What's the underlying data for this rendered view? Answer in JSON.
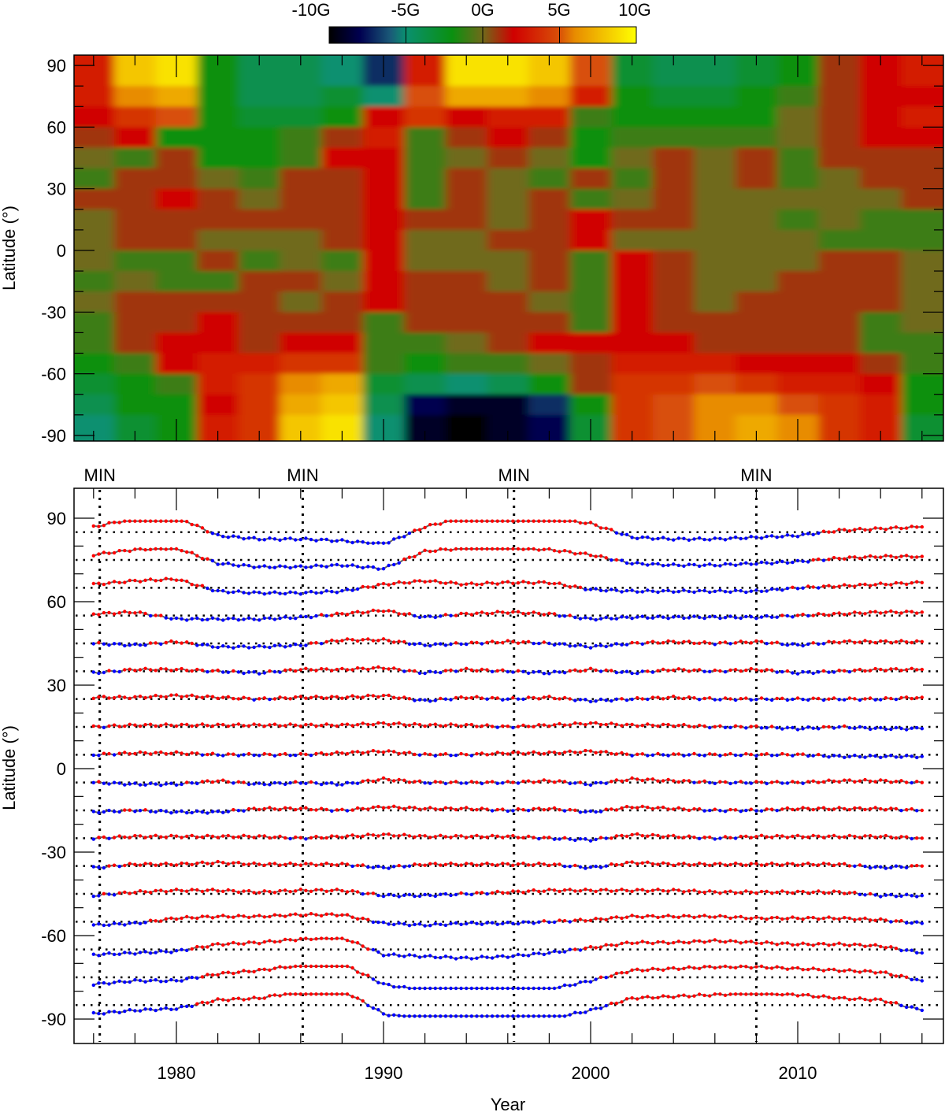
{
  "colorbar": {
    "tick_labels": [
      "-10G",
      "-5G",
      "0G",
      "5G",
      "10G"
    ],
    "range": [
      -10,
      10
    ],
    "stops": [
      {
        "v": -10,
        "c": "#000000"
      },
      {
        "v": -8,
        "c": "#000050"
      },
      {
        "v": -6,
        "c": "#1a5a78"
      },
      {
        "v": -5,
        "c": "#0a9070"
      },
      {
        "v": -2,
        "c": "#0a9010"
      },
      {
        "v": 0,
        "c": "#706a1a"
      },
      {
        "v": 2,
        "c": "#d00000"
      },
      {
        "v": 5,
        "c": "#d85008"
      },
      {
        "v": 6,
        "c": "#e88c00"
      },
      {
        "v": 10,
        "c": "#ffff00"
      }
    ]
  },
  "chart_data": [
    {
      "type": "heatmap",
      "title": "",
      "xlabel": "",
      "ylabel": "Latitude (°)",
      "xlim": [
        1975,
        2017
      ],
      "ylim": [
        -90,
        90
      ],
      "y_tick_labels": [
        "90",
        "60",
        "30",
        "0",
        "-30",
        "-60",
        "-90"
      ],
      "value_unit": "G"
    },
    {
      "type": "line",
      "xlabel": "Year",
      "ylabel": "Latitude (°)",
      "xlim": [
        1975,
        2017
      ],
      "ylim": [
        -100,
        100
      ],
      "x_tick_labels": [
        "1980",
        "1990",
        "2000",
        "2010"
      ],
      "y_tick_labels": [
        "90",
        "60",
        "30",
        "0",
        "-30",
        "-60",
        "-90"
      ],
      "positive_color": "#ff0000",
      "negative_color": "#0000ff",
      "line_color": "#606060",
      "minima": [
        {
          "label": "MIN",
          "year": 1976.3
        },
        {
          "label": "MIN",
          "year": 1986.1
        },
        {
          "label": "MIN",
          "year": 1996.3
        },
        {
          "label": "MIN",
          "year": 2008.0
        }
      ]
    }
  ],
  "field": {
    "years": [
      1976,
      1978,
      1980,
      1982,
      1984,
      1986,
      1988,
      1990,
      1992,
      1994,
      1996,
      1998,
      2000,
      2002,
      2004,
      2006,
      2008,
      2010,
      2012,
      2014,
      2016
    ],
    "bands": [
      {
        "lat": 85,
        "values": [
          3,
          8,
          9,
          -2,
          -4,
          -4,
          -5,
          -7,
          3,
          9,
          9,
          8,
          5,
          -3,
          -4,
          -4,
          -3,
          -2,
          1,
          2,
          3
        ]
      },
      {
        "lat": 75,
        "values": [
          3,
          6,
          7,
          -2,
          -4,
          -4,
          -3,
          -5,
          5,
          7,
          7,
          6,
          3,
          -2,
          -3,
          -3,
          -2,
          -1,
          1,
          2,
          2
        ]
      },
      {
        "lat": 65,
        "values": [
          2,
          4,
          5,
          -2,
          -3,
          -3,
          -2,
          2,
          4,
          2,
          3,
          3,
          -1,
          -2,
          -2,
          -2,
          -2,
          0,
          1,
          2,
          3
        ]
      },
      {
        "lat": 55,
        "values": [
          1,
          2,
          -2,
          -2,
          -2,
          -1,
          1,
          3,
          -1,
          1,
          2,
          1,
          -2,
          -1,
          -1,
          -1,
          -1,
          0,
          1,
          2,
          2
        ]
      },
      {
        "lat": 45,
        "values": [
          0,
          -1,
          1,
          -2,
          -2,
          -1,
          2,
          2,
          -1,
          0,
          1,
          0,
          -2,
          0,
          1,
          0,
          1,
          -1,
          1,
          1,
          1
        ]
      },
      {
        "lat": 35,
        "values": [
          -1,
          1,
          1,
          0,
          -1,
          1,
          1,
          2,
          -1,
          1,
          0,
          -1,
          1,
          -1,
          1,
          0,
          1,
          -1,
          0,
          1,
          1
        ]
      },
      {
        "lat": 25,
        "values": [
          1,
          1,
          2,
          1,
          0,
          1,
          1,
          2,
          -1,
          1,
          0,
          1,
          -1,
          0,
          1,
          0,
          0,
          0,
          0,
          0,
          1
        ]
      },
      {
        "lat": 15,
        "values": [
          0,
          1,
          1,
          1,
          1,
          1,
          1,
          2,
          1,
          1,
          0,
          1,
          2,
          1,
          1,
          0,
          0,
          -1,
          0,
          -1,
          -1
        ]
      },
      {
        "lat": 5,
        "values": [
          0,
          1,
          1,
          0,
          0,
          0,
          1,
          2,
          0,
          0,
          1,
          1,
          2,
          0,
          0,
          0,
          0,
          0,
          -1,
          -1,
          -1
        ]
      },
      {
        "lat": -5,
        "values": [
          0,
          -1,
          -1,
          1,
          -1,
          0,
          -1,
          2,
          0,
          0,
          0,
          1,
          -1,
          2,
          1,
          0,
          0,
          0,
          1,
          1,
          0
        ]
      },
      {
        "lat": -15,
        "values": [
          -1,
          0,
          -1,
          -1,
          1,
          1,
          0,
          2,
          1,
          1,
          0,
          1,
          -1,
          2,
          1,
          0,
          0,
          1,
          1,
          1,
          0
        ]
      },
      {
        "lat": -25,
        "values": [
          0,
          1,
          1,
          1,
          1,
          0,
          1,
          2,
          1,
          1,
          1,
          0,
          -1,
          2,
          1,
          0,
          1,
          1,
          1,
          1,
          0
        ]
      },
      {
        "lat": -35,
        "values": [
          -1,
          1,
          1,
          2,
          1,
          1,
          1,
          -1,
          1,
          1,
          1,
          1,
          -1,
          2,
          1,
          1,
          1,
          1,
          1,
          -1,
          0
        ]
      },
      {
        "lat": -45,
        "values": [
          -1,
          1,
          2,
          2,
          1,
          2,
          2,
          -1,
          -1,
          0,
          1,
          2,
          2,
          2,
          2,
          1,
          1,
          1,
          1,
          -1,
          -1
        ]
      },
      {
        "lat": -55,
        "values": [
          -2,
          -1,
          2,
          3,
          3,
          4,
          4,
          -1,
          -2,
          -1,
          -1,
          0,
          1,
          3,
          3,
          3,
          2,
          2,
          2,
          1,
          -1
        ]
      },
      {
        "lat": -65,
        "values": [
          -3,
          -2,
          -1,
          3,
          4,
          6,
          7,
          -3,
          -4,
          -5,
          -4,
          -2,
          1,
          4,
          4,
          5,
          4,
          3,
          3,
          2,
          -2
        ]
      },
      {
        "lat": -75,
        "values": [
          -4,
          -2,
          -2,
          2,
          4,
          7,
          8,
          -4,
          -8,
          -9,
          -9,
          -7,
          -2,
          4,
          5,
          6,
          6,
          5,
          4,
          3,
          -2
        ]
      },
      {
        "lat": -85,
        "values": [
          -5,
          -3,
          -2,
          3,
          4,
          8,
          9,
          -5,
          -9,
          -10,
          -9,
          -8,
          -3,
          4,
          5,
          6,
          7,
          6,
          4,
          3,
          -3
        ]
      }
    ]
  }
}
